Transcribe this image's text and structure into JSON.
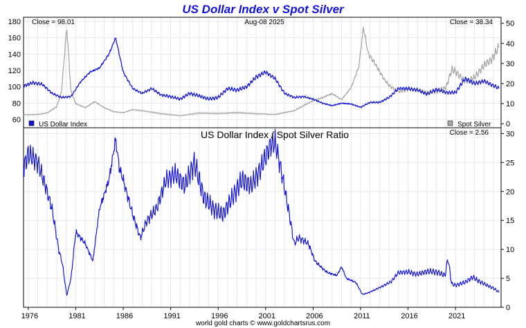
{
  "chart_data": [
    {
      "type": "line",
      "title": "US Dollar Index v Spot Silver",
      "date_label": "Aug-08  2025",
      "left_readout": "Close = 98.01",
      "right_readout": "Close = 38.34",
      "x_ticks": [
        "1976",
        "1981",
        "1986",
        "1991",
        "1996",
        "2001",
        "2006",
        "2011",
        "2016",
        "2021"
      ],
      "y_left": {
        "ticks": [
          "60",
          "80",
          "100",
          "120",
          "140",
          "160",
          "180"
        ],
        "ylim": [
          50,
          185
        ]
      },
      "y_right": {
        "ticks": [
          "0",
          "10",
          "20",
          "30",
          "40",
          "50"
        ],
        "ylim": [
          -2,
          53
        ]
      },
      "grid": true,
      "series": [
        {
          "name": "US Dollar Index",
          "axis": "left",
          "color": "#1515d4",
          "x": [
            1975.5,
            1976.5,
            1977.5,
            1978.5,
            1979.5,
            1980.5,
            1981.5,
            1982.5,
            1983.5,
            1984.5,
            1985.2,
            1986,
            1987,
            1988,
            1989,
            1990,
            1991,
            1992,
            1993,
            1994,
            1995,
            1996,
            1997,
            1998,
            1999,
            2000,
            2001,
            2002,
            2003,
            2004,
            2005,
            2006,
            2007,
            2008,
            2009,
            2010,
            2011,
            2012,
            2013,
            2014,
            2015,
            2016,
            2017,
            2018,
            2019,
            2020,
            2021,
            2022,
            2023,
            2024,
            2025.6
          ],
          "values": [
            101,
            105,
            103,
            92,
            87,
            88,
            106,
            118,
            123,
            140,
            160,
            118,
            98,
            92,
            98,
            90,
            88,
            85,
            92,
            89,
            85,
            87,
            98,
            96,
            100,
            112,
            118,
            110,
            92,
            87,
            88,
            85,
            80,
            77,
            80,
            79,
            75,
            81,
            81,
            87,
            98,
            98,
            96,
            91,
            97,
            93,
            93,
            110,
            104,
            107,
            98
          ]
        },
        {
          "name": "Spot Silver",
          "axis": "right",
          "color": "#a7a7a7",
          "x": [
            1975.5,
            1977,
            1978,
            1979,
            1979.5,
            1980.05,
            1980.5,
            1981,
            1982,
            1983,
            1984,
            1985,
            1986,
            1987,
            1988,
            1990,
            1992,
            1994,
            1996,
            1998,
            2000,
            2002,
            2004,
            2006,
            2007,
            2008,
            2009,
            2010,
            2010.8,
            2011.3,
            2011.8,
            2012.5,
            2013.5,
            2014,
            2015,
            2016,
            2017,
            2018,
            2019,
            2020,
            2020.6,
            2021,
            2022,
            2023,
            2024,
            2024.8,
            2025.6
          ],
          "values": [
            4.4,
            4.6,
            5.4,
            8.5,
            16,
            48,
            16,
            10,
            8,
            11,
            8,
            6,
            5.5,
            7,
            6.5,
            5,
            4,
            5.3,
            5.1,
            5.5,
            5,
            4.6,
            6.5,
            11.5,
            13,
            15,
            12,
            18,
            28,
            48,
            35,
            30,
            22,
            19,
            16,
            17,
            17,
            15.5,
            16,
            18,
            27,
            26,
            21,
            23,
            29,
            32,
            38.34
          ]
        }
      ]
    },
    {
      "type": "line",
      "title": "US Dollar Index  /  Spot Silver Ratio",
      "readout": "Close = 2.56",
      "x_ticks": [
        "1976",
        "1981",
        "1986",
        "1991",
        "1996",
        "2001",
        "2006",
        "2011",
        "2016",
        "2021"
      ],
      "y": {
        "ticks": [
          "0",
          "5",
          "10",
          "15",
          "20",
          "25",
          "30"
        ],
        "ylim": [
          0,
          31
        ]
      },
      "grid": true,
      "series": [
        {
          "color": "#1515d4",
          "x": [
            1975.5,
            1976,
            1977,
            1977.8,
            1978.5,
            1979.2,
            1979.6,
            1980.05,
            1980.5,
            1981,
            1982,
            1982.8,
            1983.5,
            1984.5,
            1985.2,
            1985.6,
            1986,
            1987,
            1987.8,
            1988.5,
            1989.5,
            1990.5,
            1991.5,
            1992.5,
            1993.5,
            1994.5,
            1995.5,
            1996.5,
            1997.5,
            1998.5,
            1999.5,
            2000.5,
            2001.5,
            2002,
            2002.6,
            2003.5,
            2004,
            2004.5,
            2005.5,
            2006.2,
            2006.8,
            2007.5,
            2008.5,
            2009,
            2009.5,
            2010.5,
            2011.2,
            2011.8,
            2012.5,
            2013.5,
            2014.2,
            2015,
            2016,
            2017,
            2018,
            2019,
            2019.9,
            2020.2,
            2020.6,
            2021,
            2022,
            2022.8,
            2023.5,
            2024.3,
            2025,
            2025.6
          ],
          "values": [
            24,
            26.5,
            25,
            21,
            17,
            10,
            7.5,
            2,
            5,
            13,
            11,
            8,
            17,
            22,
            29,
            24,
            22,
            16,
            12,
            15,
            17,
            22,
            23,
            21,
            25,
            19,
            17,
            16,
            19,
            22,
            21,
            24,
            28,
            28.5,
            24,
            16,
            11,
            12,
            11,
            8,
            7,
            6,
            5.5,
            7,
            5,
            4.3,
            2.2,
            2.5,
            3,
            3.8,
            4.4,
            6,
            6.1,
            5.7,
            6.2,
            6.1,
            5.5,
            8.5,
            4,
            3.8,
            4.3,
            5.2,
            4.5,
            3.8,
            3.3,
            2.56
          ]
        }
      ]
    }
  ],
  "source": "world gold charts © www.goldchartsrus.com"
}
